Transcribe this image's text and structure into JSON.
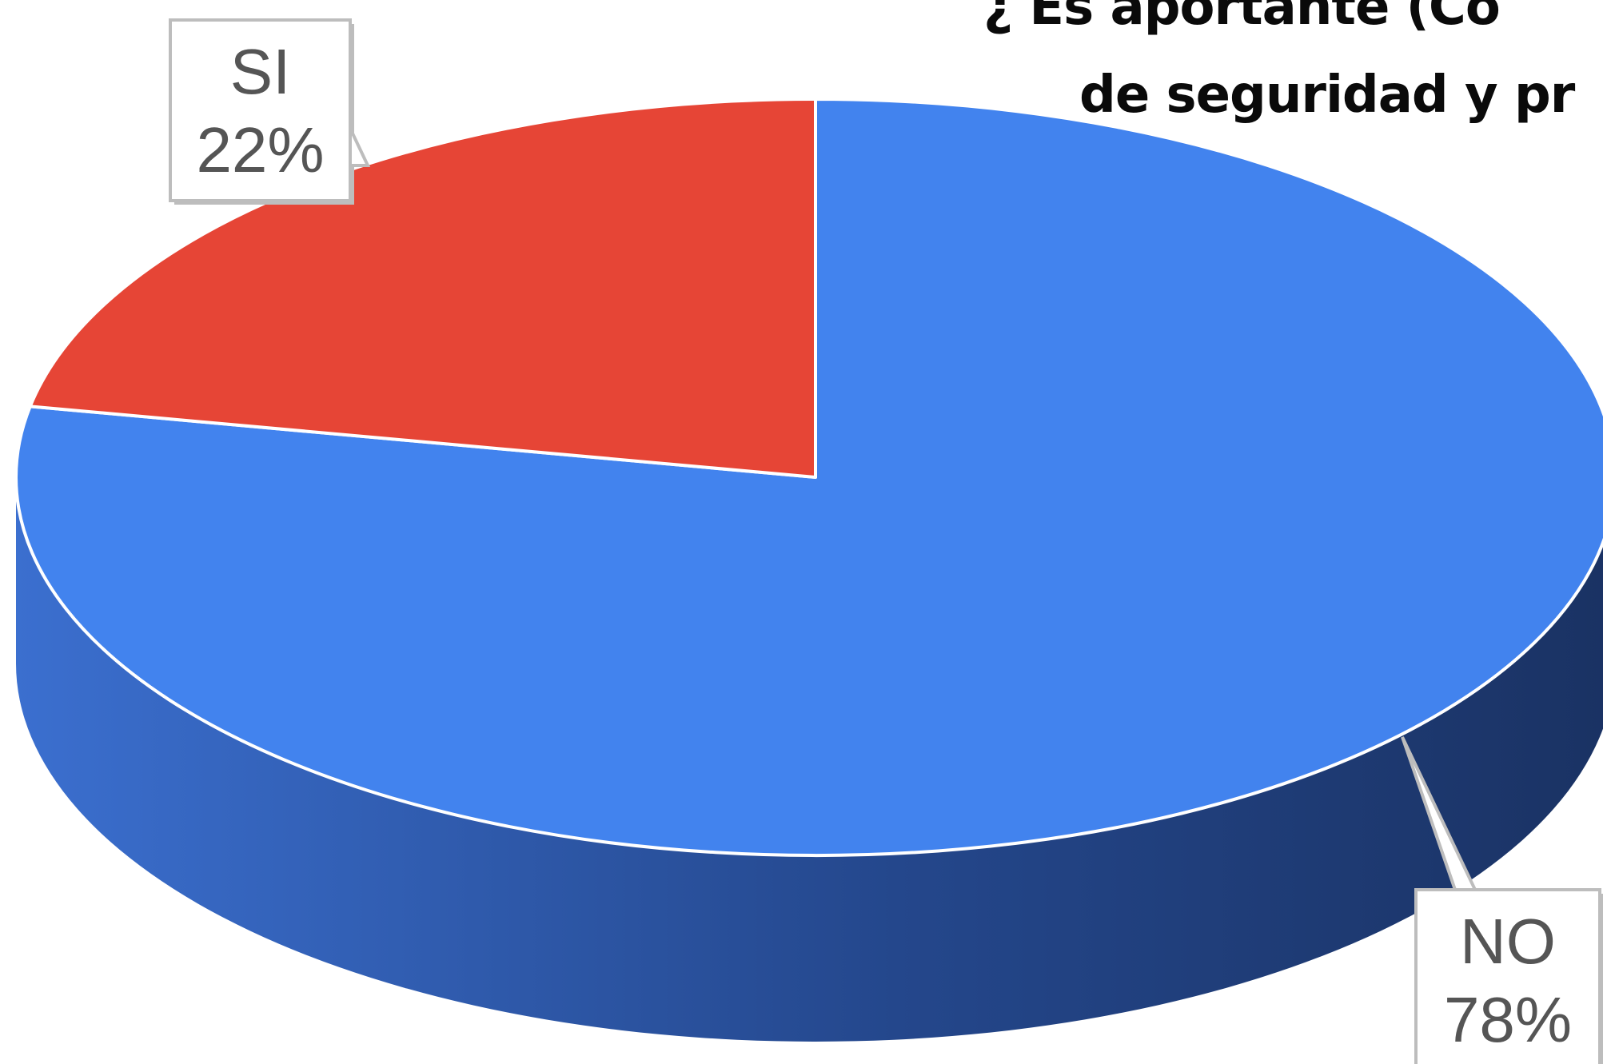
{
  "chart_data": {
    "type": "pie",
    "style": "3d",
    "title_lines": [
      "¿ Es aportante (Co",
      "de seguridad y pr"
    ],
    "categories": [
      "SI",
      "NO"
    ],
    "values": [
      22,
      78
    ],
    "value_labels": [
      "22%",
      "78%"
    ],
    "colors": {
      "SI": "#e64536",
      "NO": "#4283ee",
      "NO_side_dark": "#1c3566",
      "NO_side_light": "#3a6cc8"
    },
    "legend": "none",
    "labels": "callout boxes"
  }
}
